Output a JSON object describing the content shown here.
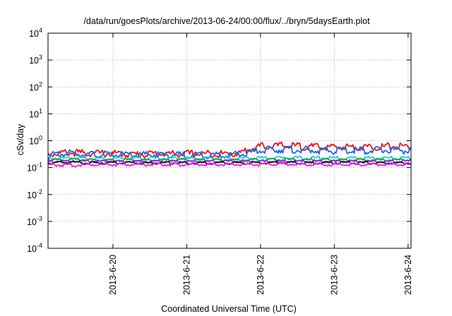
{
  "chart_data": {
    "type": "line",
    "title": "/data/run/goesPlots/archive/2013-06-24/00:00/flux/../bryn/5daysEarth.plot",
    "xlabel": "Coordinated Universal Time (UTC)",
    "ylabel": "cSv/day",
    "yscale": "log",
    "ylim": [
      0.0001,
      10000
    ],
    "xlim": [
      -0.88,
      4.04
    ],
    "y_ticks": [
      {
        "value": 0.0001,
        "base": "10",
        "exp": "-4"
      },
      {
        "value": 0.001,
        "base": "10",
        "exp": "-3"
      },
      {
        "value": 0.01,
        "base": "10",
        "exp": "-2"
      },
      {
        "value": 0.1,
        "base": "10",
        "exp": "-1"
      },
      {
        "value": 1,
        "base": "10",
        "exp": "0"
      },
      {
        "value": 10,
        "base": "10",
        "exp": "1"
      },
      {
        "value": 100,
        "base": "10",
        "exp": "2"
      },
      {
        "value": 1000,
        "base": "10",
        "exp": "3"
      },
      {
        "value": 10000,
        "base": "10",
        "exp": "4"
      }
    ],
    "x_ticks": [
      {
        "value": 0,
        "label": "2013-6-20"
      },
      {
        "value": 1,
        "label": "2013-6-21"
      },
      {
        "value": 2,
        "label": "2013-6-22"
      },
      {
        "value": 3,
        "label": "2013-6-23"
      },
      {
        "value": 4,
        "label": "2013-6-24"
      }
    ],
    "grid": true,
    "x": [
      -0.88,
      -0.6,
      -0.3,
      0.0,
      0.3,
      0.6,
      0.9,
      1.2,
      1.5,
      1.7,
      1.9,
      2.0,
      2.3,
      2.6,
      2.9,
      3.2,
      3.5,
      3.8,
      4.04
    ],
    "series": [
      {
        "color": "#e8141c",
        "values": [
          0.32,
          0.36,
          0.34,
          0.33,
          0.31,
          0.33,
          0.32,
          0.33,
          0.32,
          0.34,
          0.52,
          0.62,
          0.66,
          0.6,
          0.56,
          0.6,
          0.58,
          0.62,
          0.6
        ]
      },
      {
        "color": "#1c64f0",
        "values": [
          0.28,
          0.34,
          0.31,
          0.3,
          0.29,
          0.3,
          0.29,
          0.3,
          0.29,
          0.3,
          0.38,
          0.44,
          0.48,
          0.45,
          0.42,
          0.44,
          0.43,
          0.46,
          0.42
        ]
      },
      {
        "color": "#1ed2d2",
        "values": [
          0.22,
          0.23,
          0.22,
          0.22,
          0.22,
          0.22,
          0.22,
          0.22,
          0.22,
          0.22,
          0.23,
          0.23,
          0.23,
          0.23,
          0.23,
          0.23,
          0.23,
          0.23,
          0.23
        ]
      },
      {
        "color": "#21a04a",
        "values": [
          0.19,
          0.2,
          0.19,
          0.19,
          0.19,
          0.19,
          0.19,
          0.19,
          0.19,
          0.19,
          0.19,
          0.19,
          0.2,
          0.19,
          0.19,
          0.19,
          0.19,
          0.19,
          0.2
        ]
      },
      {
        "color": "#8a2be2",
        "values": [
          0.17,
          0.17,
          0.17,
          0.17,
          0.17,
          0.17,
          0.17,
          0.17,
          0.17,
          0.17,
          0.17,
          0.17,
          0.17,
          0.17,
          0.17,
          0.17,
          0.17,
          0.17,
          0.17
        ]
      },
      {
        "color": "#1a1a1a",
        "values": [
          0.15,
          0.16,
          0.15,
          0.15,
          0.15,
          0.15,
          0.15,
          0.15,
          0.15,
          0.15,
          0.15,
          0.15,
          0.16,
          0.15,
          0.15,
          0.15,
          0.15,
          0.15,
          0.15
        ]
      },
      {
        "color": "#ff14e8",
        "values": [
          0.13,
          0.12,
          0.13,
          0.13,
          0.13,
          0.13,
          0.13,
          0.13,
          0.13,
          0.13,
          0.13,
          0.13,
          0.14,
          0.13,
          0.13,
          0.13,
          0.13,
          0.13,
          0.13
        ]
      }
    ]
  }
}
